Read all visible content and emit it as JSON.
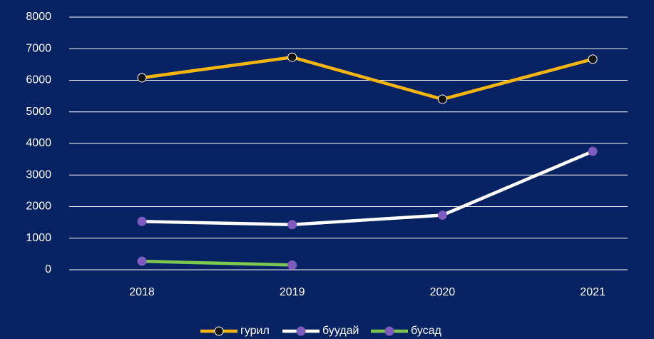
{
  "chart_data": {
    "type": "line",
    "categories": [
      "2018",
      "2019",
      "2020",
      "2021"
    ],
    "series": [
      {
        "name": "гурил",
        "color": "#f5b50f",
        "marker_color": "#111111",
        "values": [
          6080,
          6730,
          5400,
          6670
        ]
      },
      {
        "name": "буудай",
        "color": "#ffffff",
        "marker_color": "#7e5bbf",
        "values": [
          1530,
          1430,
          1730,
          3750
        ]
      },
      {
        "name": "бусад",
        "color": "#7ec850",
        "marker_color": "#7e5bbf",
        "values": [
          270,
          150,
          null,
          null
        ]
      }
    ],
    "ylim": [
      0,
      8000
    ],
    "yticks": [
      0,
      1000,
      2000,
      3000,
      4000,
      5000,
      6000,
      7000,
      8000
    ],
    "grid": true,
    "legend": "bottom",
    "background": "#072262"
  }
}
